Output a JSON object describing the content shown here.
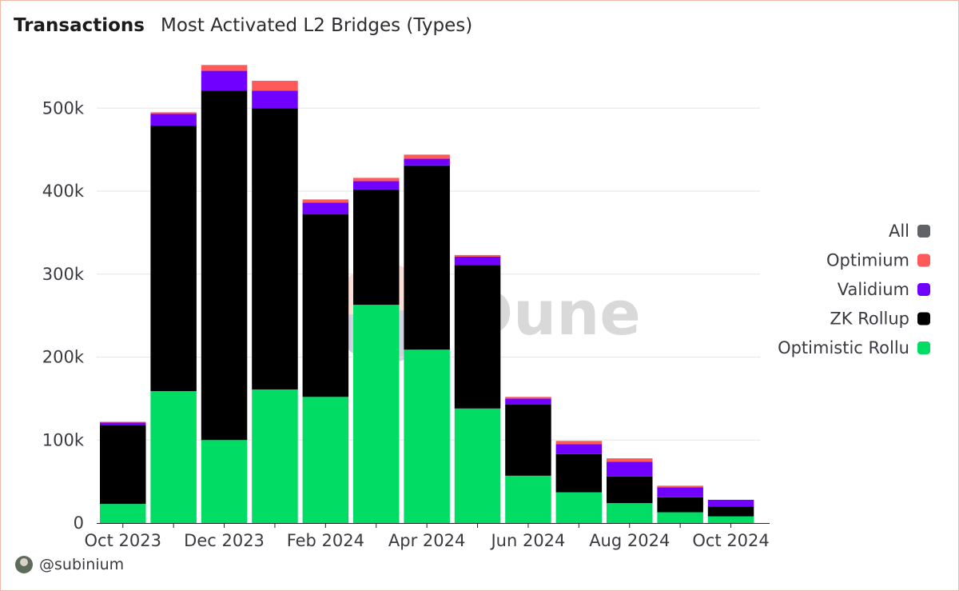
{
  "header": {
    "title": "Transactions",
    "subtitle": "Most Activated L2 Bridges (Types)"
  },
  "footer": {
    "handle": "@subinium"
  },
  "watermark": {
    "text": "Dune"
  },
  "chart_data": {
    "type": "bar",
    "stacked": true,
    "categories": [
      "Oct 2023",
      "Nov 2023",
      "Dec 2023",
      "Jan 2024",
      "Feb 2024",
      "Mar 2024",
      "Apr 2024",
      "May 2024",
      "Jun 2024",
      "Jul 2024",
      "Aug 2024",
      "Sep 2024",
      "Oct 2024"
    ],
    "x_tick_labels": [
      "Oct 2023",
      "Dec 2023",
      "Feb 2024",
      "Apr 2024",
      "Jun 2024",
      "Aug 2024",
      "Oct 2024"
    ],
    "y_ticks": [
      0,
      100000,
      200000,
      300000,
      400000,
      500000
    ],
    "y_tick_labels": [
      "0",
      "100k",
      "200k",
      "300k",
      "400k",
      "500k"
    ],
    "ylim": [
      0,
      560000
    ],
    "grid": true,
    "legend_position": "right",
    "legend": [
      {
        "name": "All",
        "color": "#5f6368"
      },
      {
        "name": "Optimium",
        "color": "#ff5a5a"
      },
      {
        "name": "Validium",
        "color": "#7000ff"
      },
      {
        "name": "ZK Rollup",
        "color": "#000000"
      },
      {
        "name": "Optimistic Rollu",
        "color": "#00dc64"
      }
    ],
    "series": [
      {
        "name": "Optimistic Rollu",
        "color": "#00dc64",
        "values": [
          23000,
          159000,
          100000,
          161000,
          152000,
          263000,
          209000,
          138000,
          57000,
          37000,
          24000,
          13000,
          8000
        ]
      },
      {
        "name": "ZK Rollup",
        "color": "#000000",
        "values": [
          95000,
          320000,
          421000,
          339000,
          220000,
          139000,
          222000,
          173000,
          86000,
          46000,
          32000,
          18000,
          12000
        ]
      },
      {
        "name": "Validium",
        "color": "#7000ff",
        "values": [
          3000,
          14000,
          24000,
          21000,
          14000,
          10000,
          8000,
          10000,
          7000,
          12000,
          18000,
          12000,
          8000
        ]
      },
      {
        "name": "Optimium",
        "color": "#ff5a5a",
        "values": [
          1000,
          2000,
          7000,
          12000,
          4000,
          4000,
          5000,
          2000,
          2000,
          4000,
          4000,
          2000,
          0
        ]
      }
    ]
  }
}
